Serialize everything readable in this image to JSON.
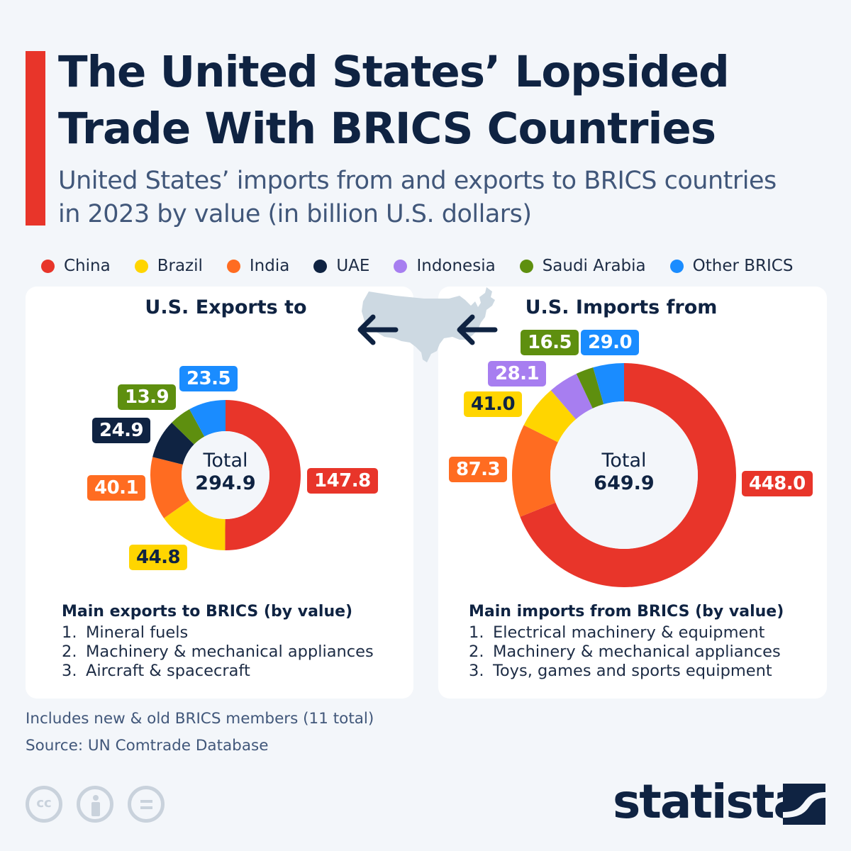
{
  "header": {
    "title": "The United States’ Lopsided Trade With BRICS Countries",
    "title_line1": "The United States’ Lopsided",
    "title_line2": "Trade With BRICS Countries",
    "subtitle_line1": "United States’ imports from and exports to BRICS countries",
    "subtitle_line2": "in 2023 by value (in billion U.S. dollars)",
    "accent_color": "#e8352a"
  },
  "legend": [
    {
      "label": "China",
      "color": "#e8352a"
    },
    {
      "label": "Brazil",
      "color": "#ffd500"
    },
    {
      "label": "India",
      "color": "#ff6c21"
    },
    {
      "label": "UAE",
      "color": "#0f2342"
    },
    {
      "label": "Indonesia",
      "color": "#a77ef0"
    },
    {
      "label": "Saudi Arabia",
      "color": "#5e8f0f"
    },
    {
      "label": "Other BRICS",
      "color": "#1a8cff"
    }
  ],
  "exports": {
    "title": "U.S. Exports to",
    "total_label": "Total",
    "total_value": "294.9",
    "labels": {
      "china": "147.8",
      "brazil": "44.8",
      "india": "40.1",
      "uae": "24.9",
      "saudi": "13.9",
      "other": "23.5"
    },
    "main_title": "Main exports to BRICS (by value)",
    "items": [
      {
        "n": "1.",
        "text": "Mineral fuels"
      },
      {
        "n": "2.",
        "text": "Machinery & mechanical appliances"
      },
      {
        "n": "3.",
        "text": "Aircraft & spacecraft"
      }
    ]
  },
  "imports": {
    "title": "U.S. Imports from",
    "total_label": "Total",
    "total_value": "649.9",
    "labels": {
      "china": "448.0",
      "india": "87.3",
      "brazil": "41.0",
      "indonesia": "28.1",
      "saudi": "16.5",
      "other": "29.0"
    },
    "main_title": "Main imports from BRICS (by value)",
    "items": [
      {
        "n": "1.",
        "text": "Electrical machinery & equipment"
      },
      {
        "n": "2.",
        "text": "Machinery & mechanical appliances"
      },
      {
        "n": "3.",
        "text": "Toys, games and sports equipment"
      }
    ]
  },
  "footer": {
    "note": "Includes new & old BRICS members (11 total)",
    "source": "Source: UN Comtrade Database",
    "brand": "statista"
  },
  "chart_data": [
    {
      "type": "pie",
      "variant": "donut",
      "title": "U.S. Exports to",
      "unit": "billion U.S. dollars",
      "year": 2023,
      "total": 294.9,
      "categories": [
        "China",
        "Brazil",
        "India",
        "UAE",
        "Saudi Arabia",
        "Other BRICS"
      ],
      "values": [
        147.8,
        44.8,
        40.1,
        24.9,
        13.9,
        23.5
      ],
      "colors": [
        "#e8352a",
        "#ffd500",
        "#ff6c21",
        "#0f2342",
        "#5e8f0f",
        "#1a8cff"
      ],
      "order": "clockwise from 12 o'clock",
      "legend_position": "top"
    },
    {
      "type": "pie",
      "variant": "donut",
      "title": "U.S. Imports from",
      "unit": "billion U.S. dollars",
      "year": 2023,
      "total": 649.9,
      "categories": [
        "China",
        "India",
        "Brazil",
        "Indonesia",
        "Saudi Arabia",
        "Other BRICS"
      ],
      "values": [
        448.0,
        87.3,
        41.0,
        28.1,
        16.5,
        29.0
      ],
      "colors": [
        "#e8352a",
        "#ff6c21",
        "#ffd500",
        "#a77ef0",
        "#5e8f0f",
        "#1a8cff"
      ],
      "order": "clockwise from 12 o'clock",
      "legend_position": "top"
    }
  ]
}
